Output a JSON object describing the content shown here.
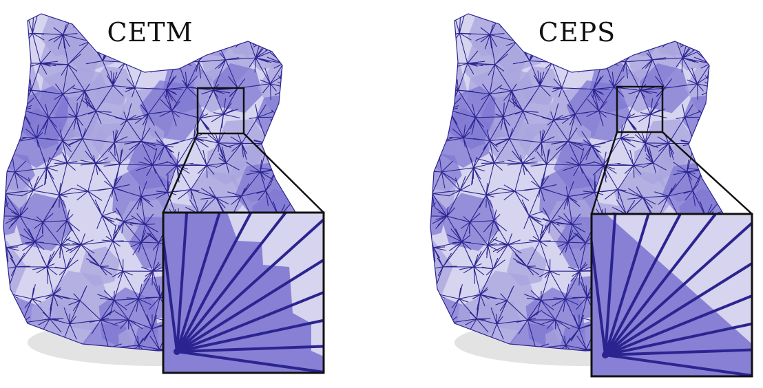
{
  "panels": [
    {
      "id": "cetm",
      "title": "CETM"
    },
    {
      "id": "ceps",
      "title": "CEPS"
    }
  ],
  "colors": {
    "mesh_light": "#d6d4ee",
    "mesh_mid": "#a9a4de",
    "mesh_dark": "#7f77d2",
    "edge": "#2b2490",
    "shadow": "#e2e2e2",
    "inset_border": "#111111"
  }
}
